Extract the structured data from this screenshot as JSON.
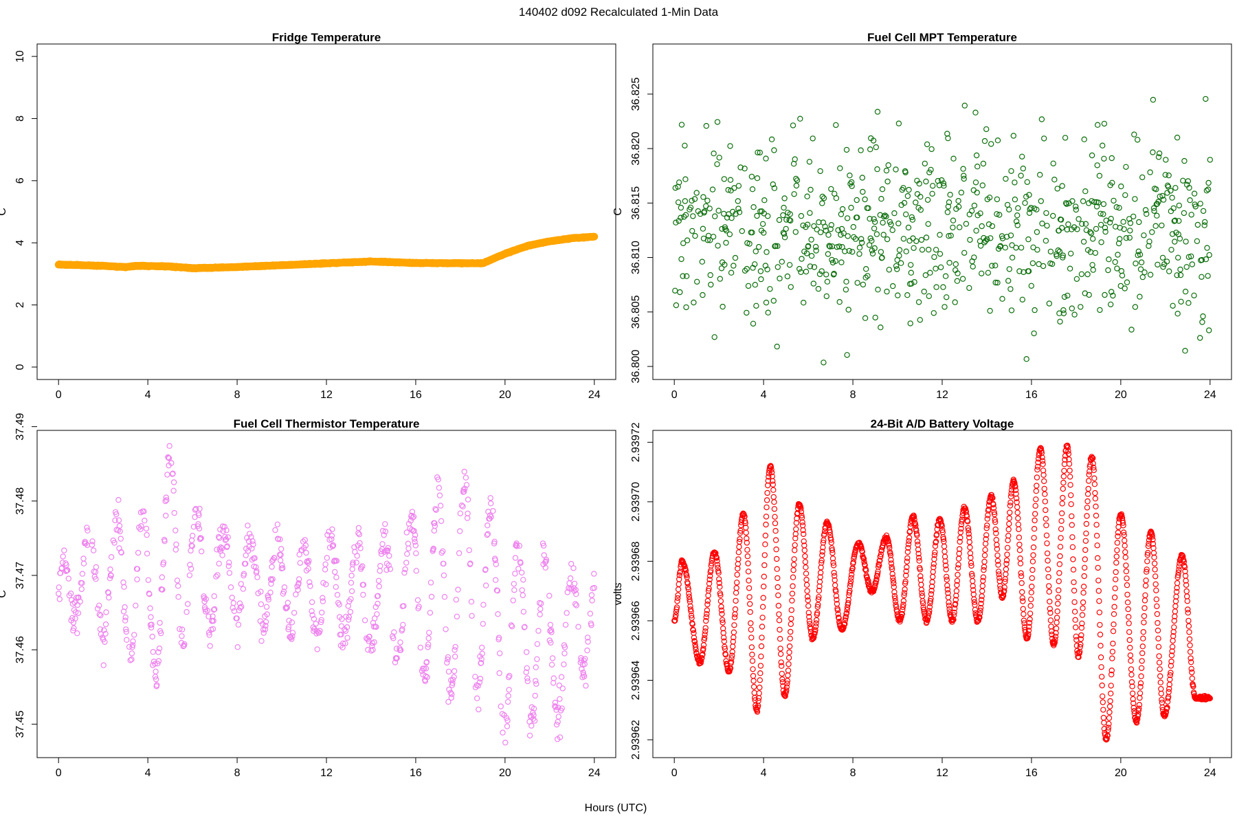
{
  "figure": {
    "suptitle": "140402   d092   Recalculated 1-Min Data",
    "xlabel": "Hours (UTC)"
  },
  "chart_data": [
    {
      "id": "fridge",
      "type": "scatter",
      "title": "Fridge Temperature",
      "ylabel": "C",
      "color": "#FFA500",
      "xlim": [
        -0.96,
        24.96
      ],
      "ylim": [
        -0.4,
        10.4
      ],
      "xticks": [
        0,
        4,
        8,
        12,
        16,
        20,
        24
      ],
      "yticks": [
        0,
        2,
        4,
        6,
        8,
        10
      ],
      "ytick_labels": [
        "0",
        "2",
        "4",
        "6",
        "8",
        "10"
      ],
      "n_points": 1440,
      "series": [
        {
          "name": "fridge_temp",
          "marker": "circle",
          "profile_x": [
            0,
            2,
            3,
            3.5,
            5,
            6,
            8,
            10,
            12,
            14,
            16,
            19,
            20,
            21,
            22,
            23,
            24
          ],
          "profile_y": [
            3.3,
            3.26,
            3.22,
            3.26,
            3.24,
            3.18,
            3.22,
            3.28,
            3.34,
            3.4,
            3.35,
            3.34,
            3.65,
            3.9,
            4.05,
            4.15,
            4.2
          ]
        }
      ]
    },
    {
      "id": "mpt",
      "type": "scatter",
      "title": "Fuel Cell MPT Temperature",
      "ylabel": "C",
      "color": "#0B6E0B",
      "xlim": [
        -0.96,
        24.96
      ],
      "ylim": [
        36.7988,
        36.8296
      ],
      "xticks": [
        0,
        4,
        8,
        12,
        16,
        20,
        24
      ],
      "yticks": [
        36.8,
        36.805,
        36.81,
        36.815,
        36.82,
        36.825
      ],
      "ytick_labels": [
        "36.800",
        "36.805",
        "36.810",
        "36.815",
        "36.820",
        "36.825"
      ],
      "n_points": 1440,
      "series": [
        {
          "name": "mpt_temp",
          "marker": "circle",
          "mean": 36.8125,
          "spread": 0.0042
        }
      ]
    },
    {
      "id": "thermistor",
      "type": "scatter",
      "title": "Fuel Cell Thermistor Temperature",
      "ylabel": "C",
      "color": "#EE82EE",
      "xlim": [
        -0.96,
        24.96
      ],
      "ylim": [
        37.4455,
        37.4895
      ],
      "xticks": [
        0,
        4,
        8,
        12,
        16,
        20,
        24
      ],
      "yticks": [
        37.45,
        37.46,
        37.47,
        37.48,
        37.49
      ],
      "ytick_labels": [
        "37.45",
        "37.46",
        "37.47",
        "37.48",
        "37.49"
      ],
      "n_points": 1440,
      "series": [
        {
          "name": "thermistor_temp",
          "marker": "circle",
          "cycle_hours": 1.2,
          "envelope_x": [
            0,
            1,
            2,
            3,
            4,
            5,
            6,
            8,
            10,
            12,
            14,
            16,
            17,
            18,
            19,
            20,
            21,
            22,
            23,
            24
          ],
          "envelope_center": [
            37.466,
            37.471,
            37.468,
            37.47,
            37.466,
            37.474,
            37.47,
            37.47,
            37.468,
            37.468,
            37.467,
            37.468,
            37.468,
            37.468,
            37.468,
            37.462,
            37.462,
            37.461,
            37.461,
            37.467
          ],
          "envelope_amp": [
            0.004,
            0.006,
            0.006,
            0.01,
            0.013,
            0.013,
            0.009,
            0.005,
            0.006,
            0.007,
            0.007,
            0.011,
            0.013,
            0.014,
            0.014,
            0.013,
            0.011,
            0.011,
            0.009,
            0.005
          ]
        }
      ]
    },
    {
      "id": "battery",
      "type": "scatter",
      "title": "24-Bit A/D Battery Voltage",
      "ylabel": "volts",
      "color": "#FF0000",
      "xlim": [
        -0.96,
        24.96
      ],
      "ylim": [
        2.939614,
        2.939724
      ],
      "xticks": [
        0,
        4,
        8,
        12,
        16,
        20,
        24
      ],
      "yticks": [
        2.93962,
        2.93964,
        2.93966,
        2.93968,
        2.9397,
        2.93972
      ],
      "ytick_labels": [
        "2.93962",
        "2.93964",
        "2.93966",
        "2.93968",
        "2.93970",
        "2.93972"
      ],
      "n_points": 1440,
      "series": [
        {
          "name": "battery_voltage",
          "marker": "circle",
          "extrema_x": [
            0,
            0.35,
            1.15,
            1.8,
            2.45,
            3.1,
            3.7,
            4.3,
            4.95,
            5.6,
            6.2,
            6.85,
            7.5,
            8.25,
            8.85,
            9.5,
            10.1,
            10.7,
            11.3,
            11.9,
            12.45,
            13.0,
            13.6,
            14.2,
            14.7,
            15.2,
            15.8,
            16.4,
            17.0,
            17.6,
            18.1,
            18.7,
            19.35,
            20.0,
            20.7,
            21.35,
            21.95,
            22.75,
            23.35,
            23.9
          ],
          "extrema_y": [
            2.93966,
            2.93968,
            2.939646,
            2.939683,
            2.939643,
            2.939696,
            2.93963,
            2.939712,
            2.939635,
            2.939699,
            2.939654,
            2.939693,
            2.939657,
            2.939686,
            2.93967,
            2.939688,
            2.93966,
            2.939695,
            2.93966,
            2.939694,
            2.93966,
            2.939698,
            2.93966,
            2.939702,
            2.939668,
            2.939707,
            2.939654,
            2.939718,
            2.939652,
            2.939719,
            2.939648,
            2.939715,
            2.93962,
            2.939696,
            2.939626,
            2.93969,
            2.939628,
            2.939682,
            2.939634,
            2.939634
          ]
        }
      ]
    }
  ]
}
